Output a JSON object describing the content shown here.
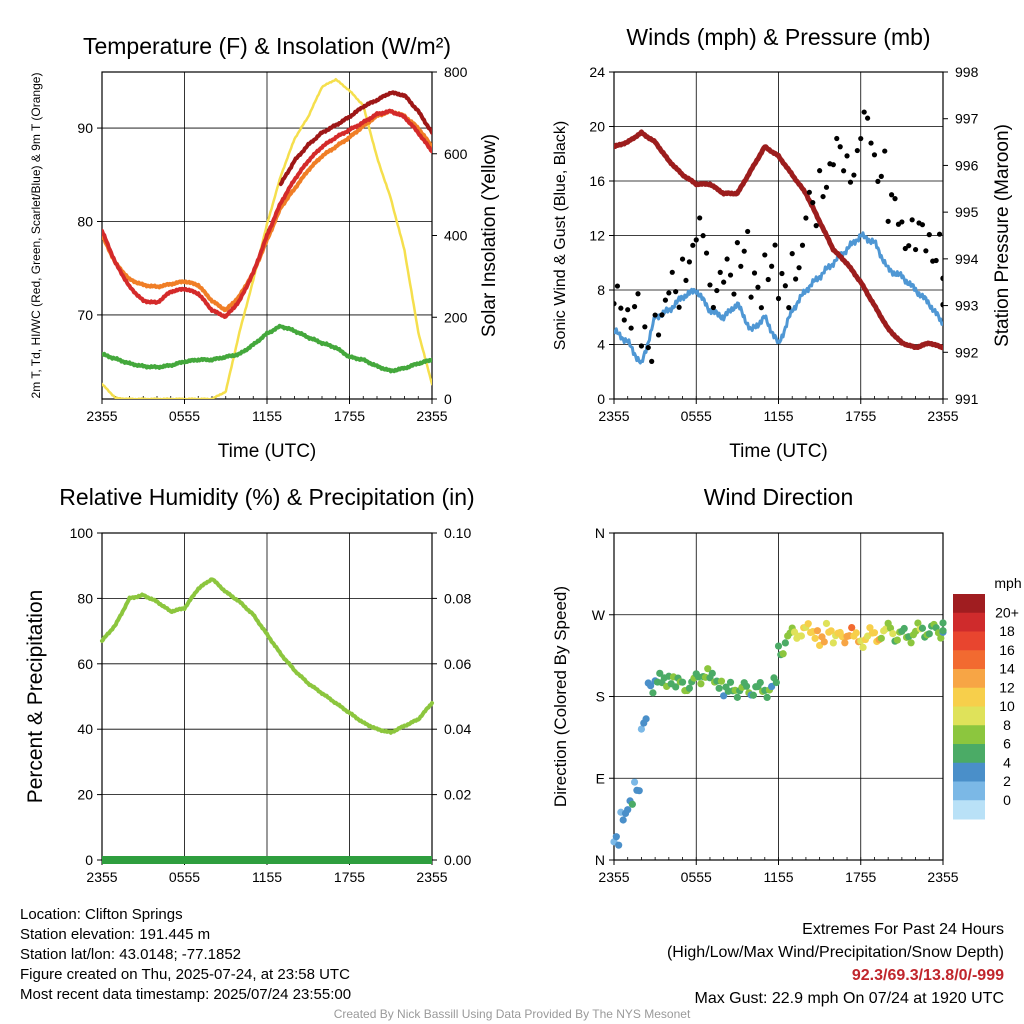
{
  "chart_data": [
    {
      "type": "line",
      "title": "Temperature (F) & Insolation (W/m²)",
      "xlabel": "Time (UTC)",
      "ylabel": "2m T, Td, HI/WC (Red, Green, Scarlet/Blue) & 9m T (Orange)",
      "y2label": "Solar Insolation (Yellow)",
      "x_ticks": [
        "2355",
        "0555",
        "1155",
        "1755",
        "2355"
      ],
      "ylim": [
        61,
        96
      ],
      "y_ticks": [
        70,
        80,
        90
      ],
      "y2lim": [
        0,
        880
      ],
      "y2_ticks": [
        0,
        200,
        400,
        600,
        800
      ],
      "series": [
        {
          "name": "Red",
          "color": "#d42a2a",
          "axis": "left",
          "x": [
            0,
            1,
            2,
            3,
            4,
            5,
            6,
            7,
            8,
            9,
            10,
            11,
            12,
            13,
            14,
            15,
            16,
            17,
            18,
            19,
            20,
            21,
            22,
            23,
            24
          ],
          "values": [
            79,
            75.5,
            73,
            71.5,
            71.3,
            72.5,
            72.8,
            72.3,
            70.5,
            69.8,
            71.5,
            74.5,
            78.5,
            82,
            84.5,
            86.5,
            88,
            89,
            89.8,
            90.6,
            91.5,
            91.8,
            91.2,
            89.5,
            87.5
          ]
        },
        {
          "name": "Green",
          "color": "#44a83c",
          "axis": "left",
          "x": [
            0,
            1,
            2,
            3,
            4,
            5,
            6,
            7,
            8,
            9,
            10,
            11,
            12,
            13,
            14,
            15,
            16,
            17,
            18,
            19,
            20,
            21,
            22,
            23,
            24
          ],
          "values": [
            65.8,
            65.3,
            64.8,
            64.5,
            64.4,
            64.6,
            65,
            65.2,
            65.2,
            65.5,
            65.8,
            66.8,
            68,
            68.8,
            68.3,
            67.6,
            67,
            66.5,
            65.5,
            65.2,
            64.5,
            64,
            64.3,
            64.8,
            65.2
          ]
        },
        {
          "name": "Scarlet/Blue",
          "color": "#9e1717",
          "axis": "left",
          "x": [
            13,
            14,
            15,
            16,
            17,
            18,
            19,
            20,
            21,
            22,
            23,
            24
          ],
          "values": [
            84,
            86.5,
            88.2,
            89.5,
            90.3,
            91.2,
            92.3,
            93,
            93.8,
            93.5,
            91.8,
            89.5
          ]
        },
        {
          "name": "Orange",
          "color": "#f07e26",
          "axis": "left",
          "x": [
            0,
            1,
            2,
            3,
            4,
            5,
            6,
            7,
            8,
            9,
            10,
            11,
            12,
            13,
            14,
            15,
            16,
            17,
            18,
            19,
            20,
            21,
            22,
            23,
            24
          ],
          "values": [
            78.5,
            75.5,
            73.8,
            73.2,
            73,
            73.3,
            73.6,
            73.2,
            71.5,
            70.5,
            72,
            74.5,
            78,
            81.5,
            83.5,
            85.5,
            87,
            88,
            89,
            90.2,
            91.3,
            91.8,
            91.3,
            90,
            88
          ]
        },
        {
          "name": "Yellow",
          "color": "#f5df4d",
          "axis": "right",
          "x": [
            0,
            1,
            2,
            3,
            4,
            5,
            6,
            7,
            8,
            9,
            10,
            11,
            12,
            13,
            14,
            15,
            16,
            17,
            18,
            19,
            20,
            21,
            22,
            23,
            24
          ],
          "values": [
            40,
            2,
            0,
            0,
            0,
            0,
            0,
            0,
            0,
            20,
            180,
            320,
            470,
            600,
            700,
            760,
            840,
            860,
            830,
            790,
            650,
            540,
            400,
            180,
            40
          ]
        }
      ]
    },
    {
      "type": "line",
      "title": "Winds (mph) & Pressure (mb)",
      "xlabel": "Time (UTC)",
      "ylabel": "Sonic Wind & Gust (Blue, Black)",
      "y2label": "Station Pressure (Maroon)",
      "x_ticks": [
        "2355",
        "0555",
        "1155",
        "1755",
        "2355"
      ],
      "ylim": [
        0,
        24
      ],
      "y_ticks": [
        0,
        4,
        8,
        12,
        16,
        20,
        24
      ],
      "y2lim": [
        991,
        998
      ],
      "y2_ticks": [
        991,
        992,
        993,
        994,
        995,
        996,
        997,
        998
      ],
      "series": [
        {
          "name": "Blue",
          "color": "#4f97d4",
          "axis": "left",
          "x": [
            0,
            1,
            2,
            3,
            4,
            5,
            6,
            7,
            8,
            9,
            10,
            11,
            12,
            13,
            14,
            15,
            16,
            17,
            18,
            19,
            20,
            21,
            22,
            23,
            24
          ],
          "values": [
            5,
            4.2,
            2.5,
            6,
            6.5,
            7.5,
            8,
            6.5,
            6,
            7,
            5,
            6,
            4,
            6.5,
            8,
            9,
            10,
            11,
            12,
            11.5,
            9.5,
            9,
            8,
            7,
            5.5
          ]
        },
        {
          "name": "Black",
          "color": "#000000",
          "axis": "left",
          "style": "dots",
          "x": [
            0,
            1,
            2,
            3,
            4,
            5,
            6,
            7,
            8,
            9,
            10,
            11,
            12,
            13,
            14,
            15,
            16,
            17,
            18,
            19,
            20,
            21,
            22,
            23,
            24
          ],
          "values": [
            7,
            6.5,
            4,
            6,
            8,
            10,
            12,
            8,
            9,
            11,
            8,
            10,
            8,
            10,
            14,
            16,
            18,
            17,
            20,
            17,
            14,
            12,
            12,
            11,
            8
          ]
        },
        {
          "name": "Maroon",
          "color": "#9c1d1d",
          "axis": "right",
          "x": [
            0,
            1,
            2,
            3,
            4,
            5,
            6,
            7,
            8,
            9,
            10,
            11,
            12,
            13,
            14,
            15,
            16,
            17,
            18,
            19,
            20,
            21,
            22,
            23,
            24
          ],
          "values": [
            996.4,
            996.5,
            996.7,
            996.5,
            996.1,
            995.8,
            995.6,
            995.6,
            995.4,
            995.4,
            995.9,
            996.4,
            996.2,
            995.8,
            995.4,
            994.8,
            994.2,
            993.9,
            993.5,
            993,
            992.5,
            992.2,
            992.1,
            992.2,
            992.1
          ]
        }
      ]
    },
    {
      "type": "line",
      "title": "Relative Humidity (%) & Precipitation (in)",
      "ylabel": "Percent & Precipitation",
      "x_ticks": [
        "2355",
        "0555",
        "1155",
        "1755",
        "2355"
      ],
      "ylim": [
        0,
        100
      ],
      "y_ticks": [
        0,
        20,
        40,
        60,
        80,
        100
      ],
      "y2lim": [
        0,
        0.1
      ],
      "y2_ticks": [
        "0.00",
        "0.02",
        "0.04",
        "0.06",
        "0.08",
        "0.10"
      ],
      "series": [
        {
          "name": "RH",
          "color": "#8cc63e",
          "axis": "left",
          "x": [
            0,
            1,
            2,
            3,
            4,
            5,
            6,
            7,
            8,
            9,
            10,
            11,
            12,
            13,
            14,
            15,
            16,
            17,
            18,
            19,
            20,
            21,
            22,
            23,
            24
          ],
          "values": [
            67,
            72,
            80,
            81,
            79,
            76,
            77,
            83,
            86,
            82,
            79,
            75,
            69,
            63,
            58,
            54,
            51,
            48,
            45,
            42,
            40,
            39,
            41,
            43,
            48
          ]
        },
        {
          "name": "Precipitation",
          "color": "#2e9e3e",
          "axis": "right",
          "x": [
            0,
            24
          ],
          "values": [
            0,
            0
          ]
        }
      ]
    },
    {
      "type": "scatter",
      "title": "Wind Direction",
      "ylabel": "Direction (Colored By Speed)",
      "x_ticks": [
        "2355",
        "0555",
        "1155",
        "1755",
        "2355"
      ],
      "y_ticks": [
        "N",
        "E",
        "S",
        "W",
        "N"
      ],
      "ylim": [
        0,
        360
      ],
      "colorbar": {
        "title": "mph",
        "labels": [
          "20+",
          "18",
          "16",
          "14",
          "12",
          "10",
          "8",
          "6",
          "4",
          "2",
          "0"
        ],
        "colors": [
          "#a01d20",
          "#cf2b2c",
          "#e8452f",
          "#f26a30",
          "#f7a545",
          "#f7cf4b",
          "#dfe25a",
          "#8cc63e",
          "#4bab66",
          "#4a8fc9",
          "#7bb8e6",
          "#b9e1f7"
        ]
      },
      "points": {
        "x": [
          0,
          0.5,
          1,
          1.5,
          2,
          2.5,
          3,
          3.5,
          4,
          4.5,
          5,
          5.5,
          6,
          6.5,
          7,
          7.5,
          8,
          8.5,
          9,
          9.5,
          10,
          10.5,
          11,
          11.5,
          12,
          12.5,
          13,
          13.5,
          14,
          14.5,
          15,
          15.5,
          16,
          16.5,
          17,
          17.5,
          18,
          18.5,
          19,
          19.5,
          20,
          20.5,
          21,
          21.5,
          22,
          22.5,
          23,
          23.5,
          24
        ],
        "y": [
          20,
          50,
          60,
          80,
          150,
          190,
          200,
          195,
          200,
          195,
          190,
          195,
          200,
          205,
          200,
          195,
          185,
          190,
          185,
          190,
          185,
          190,
          185,
          195,
          230,
          245,
          250,
          250,
          255,
          250,
          240,
          255,
          245,
          245,
          250,
          245,
          240,
          250,
          245,
          250,
          255,
          245,
          250,
          245,
          255,
          250,
          255,
          250,
          255
        ],
        "speed": [
          3,
          3,
          4,
          3,
          3,
          4,
          5,
          6,
          6,
          6,
          7,
          6,
          6,
          7,
          6,
          6,
          5,
          6,
          6,
          6,
          5,
          6,
          6,
          5,
          6,
          7,
          9,
          10,
          11,
          12,
          13,
          11,
          10,
          12,
          14,
          12,
          10,
          11,
          12,
          9,
          8,
          7,
          6,
          7,
          8,
          6,
          6,
          7,
          5
        ]
      }
    }
  ],
  "info": {
    "location": "Location: Clifton Springs",
    "elevation": "Station elevation: 191.445 m",
    "latlon": "Station lat/lon: 43.0148; -77.1852",
    "created": "Figure created on Thu, 2025-07-24, at 23:58 UTC",
    "recent": "Most recent data timestamp: 2025/07/24 23:55:00",
    "extremes_title": "Extremes For Past 24 Hours",
    "extremes_desc": "(High/Low/Max Wind/Precipitation/Snow Depth)",
    "extremes_values": "92.3/69.3/13.8/0/-999",
    "max_gust": "Max Gust: 22.9 mph On 07/24 at 1920 UTC",
    "credit": "Created By Nick Bassill Using Data Provided By The NYS Mesonet"
  }
}
